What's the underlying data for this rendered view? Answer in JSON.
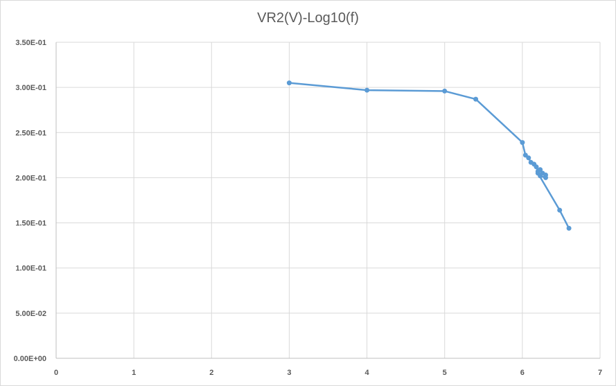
{
  "chart_data": {
    "type": "scatter",
    "title": "VR2(V)-Log10(f)",
    "xlabel": "",
    "ylabel": "",
    "xlim": [
      0,
      7
    ],
    "ylim": [
      0,
      0.35
    ],
    "grid": true,
    "x_ticks": [
      "0",
      "1",
      "2",
      "3",
      "4",
      "5",
      "6",
      "7"
    ],
    "y_ticks": [
      "0.00E+00",
      "5.00E-02",
      "1.00E-01",
      "1.50E-01",
      "2.00E-01",
      "2.50E-01",
      "3.00E-01",
      "3.50E-01"
    ],
    "series": [
      {
        "color": "#5b9bd5",
        "lines": true,
        "x": [
          3.0,
          4.0,
          5.0,
          5.4,
          6.0,
          6.04,
          6.08,
          6.11,
          6.15,
          6.18,
          6.2,
          6.23,
          6.26,
          6.3,
          6.3,
          6.23,
          6.2,
          6.48,
          6.6
        ],
        "y": [
          0.305,
          0.297,
          0.296,
          0.287,
          0.239,
          0.225,
          0.222,
          0.217,
          0.215,
          0.212,
          0.207,
          0.209,
          0.205,
          0.203,
          0.2,
          0.202,
          0.205,
          0.164,
          0.144
        ]
      }
    ]
  }
}
